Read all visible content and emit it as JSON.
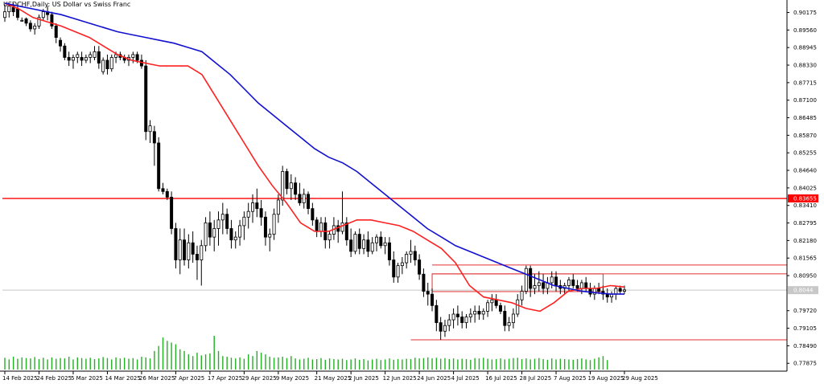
{
  "header": {
    "symbol": "USDCHF",
    "period": "Daily",
    "description": "US Dollar vs Swiss Franc"
  },
  "colors": {
    "background": "#ffffff",
    "bull_body": "#ffffff",
    "bear_body": "#000000",
    "candle_outline": "#000000",
    "ma_fast": "#ff2020",
    "ma_slow": "#1010d0",
    "volume": "#22b022",
    "level_line": "#ff0000",
    "box_line": "#e03030",
    "current_price_line": "#c8c8c8"
  },
  "chart_data": {
    "type": "candlestick",
    "title": "USDCHF,Daily: US Dollar vs Swiss Franc",
    "x_tick_labels": [
      "14 Feb 2025",
      "24 Feb 2025",
      "5 Mar 2025",
      "14 Mar 2025",
      "26 Mar 2025",
      "7 Apr 2025",
      "17 Apr 2025",
      "29 Apr 2025",
      "9 May 2025",
      "21 May 2025",
      "2 Jun 2025",
      "12 Jun 2025",
      "24 Jun 2025",
      "4 Jul 2025",
      "16 Jul 2025",
      "28 Jul 2025",
      "7 Aug 2025",
      "19 Aug 2025",
      "29 Aug 2025"
    ],
    "y_tick_labels": [
      "0.90175",
      "0.89560",
      "0.88945",
      "0.88330",
      "0.87715",
      "0.87100",
      "0.86485",
      "0.85870",
      "0.85255",
      "0.84640",
      "0.84025",
      "0.83410",
      "0.82795",
      "0.82180",
      "0.81565",
      "0.80950",
      "0.79720",
      "0.79105",
      "0.78490",
      "0.77875"
    ],
    "ylim": [
      0.776,
      0.905
    ],
    "grid": false,
    "highlighted_level": {
      "value": 0.83655,
      "label": "0.83655"
    },
    "current_price": {
      "value": 0.8044,
      "label": "0.8044"
    },
    "range_box": {
      "top": 0.8101,
      "bottom": 0.8039
    },
    "upper_mark_line": 0.8132,
    "lower_mark_line": 0.787,
    "indicators": [
      {
        "type": "moving_average",
        "color": "red",
        "values": [
          0.905,
          0.903,
          0.9,
          0.8985,
          0.897,
          0.895,
          0.893,
          0.89,
          0.887,
          0.885,
          0.884,
          0.883,
          0.883,
          0.883,
          0.88,
          0.872,
          0.864,
          0.856,
          0.848,
          0.841,
          0.835,
          0.828,
          0.825,
          0.825,
          0.827,
          0.829,
          0.829,
          0.828,
          0.827,
          0.825,
          0.822,
          0.819,
          0.814,
          0.806,
          0.802,
          0.801,
          0.8,
          0.798,
          0.797,
          0.8,
          0.804,
          0.805,
          0.805,
          0.806,
          0.8055
        ]
      },
      {
        "type": "moving_average",
        "color": "blue",
        "values": [
          0.905,
          0.904,
          0.903,
          0.902,
          0.901,
          0.8995,
          0.898,
          0.8965,
          0.895,
          0.894,
          0.893,
          0.892,
          0.891,
          0.8895,
          0.888,
          0.884,
          0.88,
          0.875,
          0.87,
          0.866,
          0.862,
          0.858,
          0.854,
          0.851,
          0.849,
          0.846,
          0.842,
          0.838,
          0.834,
          0.83,
          0.826,
          0.823,
          0.82,
          0.818,
          0.816,
          0.814,
          0.812,
          0.81,
          0.808,
          0.806,
          0.805,
          0.804,
          0.8035,
          0.803,
          0.803
        ]
      }
    ],
    "candles": [
      {
        "o": 0.9,
        "h": 0.9045,
        "l": 0.8985,
        "c": 0.902
      },
      {
        "o": 0.902,
        "h": 0.905,
        "l": 0.9,
        "c": 0.904
      },
      {
        "o": 0.9035,
        "h": 0.905,
        "l": 0.9005,
        "c": 0.902
      },
      {
        "o": 0.903,
        "h": 0.9048,
        "l": 0.899,
        "c": 0.9
      },
      {
        "o": 0.899,
        "h": 0.9,
        "l": 0.8985,
        "c": 0.899
      },
      {
        "o": 0.8995,
        "h": 0.9,
        "l": 0.897,
        "c": 0.898
      },
      {
        "o": 0.898,
        "h": 0.899,
        "l": 0.895,
        "c": 0.896
      },
      {
        "o": 0.896,
        "h": 0.898,
        "l": 0.894,
        "c": 0.897
      },
      {
        "o": 0.897,
        "h": 0.901,
        "l": 0.896,
        "c": 0.9
      },
      {
        "o": 0.9,
        "h": 0.903,
        "l": 0.899,
        "c": 0.902
      },
      {
        "o": 0.902,
        "h": 0.904,
        "l": 0.899,
        "c": 0.901
      },
      {
        "o": 0.901,
        "h": 0.902,
        "l": 0.896,
        "c": 0.897
      },
      {
        "o": 0.897,
        "h": 0.898,
        "l": 0.891,
        "c": 0.893
      },
      {
        "o": 0.892,
        "h": 0.893,
        "l": 0.888,
        "c": 0.89
      },
      {
        "o": 0.89,
        "h": 0.891,
        "l": 0.885,
        "c": 0.886
      },
      {
        "o": 0.886,
        "h": 0.888,
        "l": 0.883,
        "c": 0.885
      },
      {
        "o": 0.885,
        "h": 0.887,
        "l": 0.882,
        "c": 0.886
      },
      {
        "o": 0.886,
        "h": 0.888,
        "l": 0.884,
        "c": 0.887
      },
      {
        "o": 0.886,
        "h": 0.888,
        "l": 0.883,
        "c": 0.885
      },
      {
        "o": 0.885,
        "h": 0.887,
        "l": 0.884,
        "c": 0.886
      },
      {
        "o": 0.886,
        "h": 0.888,
        "l": 0.884,
        "c": 0.887
      },
      {
        "o": 0.886,
        "h": 0.89,
        "l": 0.885,
        "c": 0.888
      },
      {
        "o": 0.888,
        "h": 0.89,
        "l": 0.882,
        "c": 0.884
      },
      {
        "o": 0.881,
        "h": 0.886,
        "l": 0.88,
        "c": 0.885
      },
      {
        "o": 0.885,
        "h": 0.887,
        "l": 0.88,
        "c": 0.882
      },
      {
        "o": 0.882,
        "h": 0.887,
        "l": 0.881,
        "c": 0.886
      },
      {
        "o": 0.886,
        "h": 0.888,
        "l": 0.884,
        "c": 0.887
      },
      {
        "o": 0.887,
        "h": 0.888,
        "l": 0.885,
        "c": 0.886
      },
      {
        "o": 0.886,
        "h": 0.887,
        "l": 0.884,
        "c": 0.885
      },
      {
        "o": 0.885,
        "h": 0.887,
        "l": 0.883,
        "c": 0.886
      },
      {
        "o": 0.886,
        "h": 0.888,
        "l": 0.884,
        "c": 0.887
      },
      {
        "o": 0.887,
        "h": 0.888,
        "l": 0.884,
        "c": 0.885
      },
      {
        "o": 0.885,
        "h": 0.887,
        "l": 0.882,
        "c": 0.883
      },
      {
        "o": 0.883,
        "h": 0.885,
        "l": 0.857,
        "c": 0.86
      },
      {
        "o": 0.86,
        "h": 0.864,
        "l": 0.856,
        "c": 0.862
      },
      {
        "o": 0.86,
        "h": 0.862,
        "l": 0.848,
        "c": 0.856
      },
      {
        "o": 0.856,
        "h": 0.858,
        "l": 0.839,
        "c": 0.84
      },
      {
        "o": 0.84,
        "h": 0.842,
        "l": 0.838,
        "c": 0.839
      },
      {
        "o": 0.839,
        "h": 0.84,
        "l": 0.836,
        "c": 0.837
      },
      {
        "o": 0.837,
        "h": 0.839,
        "l": 0.824,
        "c": 0.826
      },
      {
        "o": 0.826,
        "h": 0.828,
        "l": 0.812,
        "c": 0.815
      },
      {
        "o": 0.815,
        "h": 0.826,
        "l": 0.81,
        "c": 0.822
      },
      {
        "o": 0.822,
        "h": 0.826,
        "l": 0.813,
        "c": 0.815
      },
      {
        "o": 0.815,
        "h": 0.824,
        "l": 0.812,
        "c": 0.821
      },
      {
        "o": 0.821,
        "h": 0.825,
        "l": 0.814,
        "c": 0.817
      },
      {
        "o": 0.817,
        "h": 0.82,
        "l": 0.808,
        "c": 0.815
      },
      {
        "o": 0.815,
        "h": 0.822,
        "l": 0.806,
        "c": 0.82
      },
      {
        "o": 0.82,
        "h": 0.83,
        "l": 0.818,
        "c": 0.828
      },
      {
        "o": 0.828,
        "h": 0.832,
        "l": 0.82,
        "c": 0.823
      },
      {
        "o": 0.823,
        "h": 0.829,
        "l": 0.818,
        "c": 0.826
      },
      {
        "o": 0.826,
        "h": 0.832,
        "l": 0.82,
        "c": 0.829
      },
      {
        "o": 0.829,
        "h": 0.835,
        "l": 0.824,
        "c": 0.831
      },
      {
        "o": 0.831,
        "h": 0.833,
        "l": 0.824,
        "c": 0.826
      },
      {
        "o": 0.826,
        "h": 0.829,
        "l": 0.819,
        "c": 0.822
      },
      {
        "o": 0.822,
        "h": 0.825,
        "l": 0.819,
        "c": 0.823
      },
      {
        "o": 0.823,
        "h": 0.829,
        "l": 0.82,
        "c": 0.827
      },
      {
        "o": 0.827,
        "h": 0.832,
        "l": 0.822,
        "c": 0.83
      },
      {
        "o": 0.83,
        "h": 0.835,
        "l": 0.826,
        "c": 0.832
      },
      {
        "o": 0.832,
        "h": 0.838,
        "l": 0.828,
        "c": 0.835
      },
      {
        "o": 0.835,
        "h": 0.84,
        "l": 0.83,
        "c": 0.833
      },
      {
        "o": 0.833,
        "h": 0.836,
        "l": 0.827,
        "c": 0.83
      },
      {
        "o": 0.83,
        "h": 0.832,
        "l": 0.82,
        "c": 0.823
      },
      {
        "o": 0.823,
        "h": 0.826,
        "l": 0.818,
        "c": 0.824
      },
      {
        "o": 0.824,
        "h": 0.833,
        "l": 0.822,
        "c": 0.831
      },
      {
        "o": 0.831,
        "h": 0.838,
        "l": 0.828,
        "c": 0.836
      },
      {
        "o": 0.836,
        "h": 0.848,
        "l": 0.834,
        "c": 0.846
      },
      {
        "o": 0.846,
        "h": 0.847,
        "l": 0.838,
        "c": 0.84
      },
      {
        "o": 0.84,
        "h": 0.845,
        "l": 0.836,
        "c": 0.842
      },
      {
        "o": 0.842,
        "h": 0.844,
        "l": 0.836,
        "c": 0.838
      },
      {
        "o": 0.838,
        "h": 0.842,
        "l": 0.834,
        "c": 0.835
      },
      {
        "o": 0.835,
        "h": 0.84,
        "l": 0.833,
        "c": 0.838
      },
      {
        "o": 0.838,
        "h": 0.839,
        "l": 0.831,
        "c": 0.833
      },
      {
        "o": 0.833,
        "h": 0.835,
        "l": 0.827,
        "c": 0.829
      },
      {
        "o": 0.829,
        "h": 0.83,
        "l": 0.823,
        "c": 0.825
      },
      {
        "o": 0.825,
        "h": 0.83,
        "l": 0.823,
        "c": 0.828
      },
      {
        "o": 0.828,
        "h": 0.83,
        "l": 0.819,
        "c": 0.822
      },
      {
        "o": 0.822,
        "h": 0.825,
        "l": 0.819,
        "c": 0.824
      },
      {
        "o": 0.824,
        "h": 0.83,
        "l": 0.822,
        "c": 0.827
      },
      {
        "o": 0.827,
        "h": 0.829,
        "l": 0.821,
        "c": 0.825
      },
      {
        "o": 0.825,
        "h": 0.839,
        "l": 0.824,
        "c": 0.828
      },
      {
        "o": 0.828,
        "h": 0.83,
        "l": 0.82,
        "c": 0.822
      },
      {
        "o": 0.822,
        "h": 0.826,
        "l": 0.816,
        "c": 0.818
      },
      {
        "o": 0.818,
        "h": 0.825,
        "l": 0.817,
        "c": 0.824
      },
      {
        "o": 0.824,
        "h": 0.826,
        "l": 0.817,
        "c": 0.819
      },
      {
        "o": 0.819,
        "h": 0.824,
        "l": 0.817,
        "c": 0.822
      },
      {
        "o": 0.822,
        "h": 0.825,
        "l": 0.816,
        "c": 0.818
      },
      {
        "o": 0.818,
        "h": 0.823,
        "l": 0.817,
        "c": 0.821
      },
      {
        "o": 0.821,
        "h": 0.824,
        "l": 0.818,
        "c": 0.823
      },
      {
        "o": 0.823,
        "h": 0.825,
        "l": 0.819,
        "c": 0.82
      },
      {
        "o": 0.82,
        "h": 0.823,
        "l": 0.817,
        "c": 0.821
      },
      {
        "o": 0.821,
        "h": 0.823,
        "l": 0.813,
        "c": 0.815
      },
      {
        "o": 0.815,
        "h": 0.818,
        "l": 0.807,
        "c": 0.809
      },
      {
        "o": 0.809,
        "h": 0.814,
        "l": 0.807,
        "c": 0.813
      },
      {
        "o": 0.813,
        "h": 0.816,
        "l": 0.81,
        "c": 0.814
      },
      {
        "o": 0.814,
        "h": 0.818,
        "l": 0.812,
        "c": 0.817
      },
      {
        "o": 0.817,
        "h": 0.822,
        "l": 0.814,
        "c": 0.818
      },
      {
        "o": 0.818,
        "h": 0.82,
        "l": 0.813,
        "c": 0.815
      },
      {
        "o": 0.815,
        "h": 0.817,
        "l": 0.808,
        "c": 0.81
      },
      {
        "o": 0.81,
        "h": 0.812,
        "l": 0.802,
        "c": 0.804
      },
      {
        "o": 0.804,
        "h": 0.807,
        "l": 0.799,
        "c": 0.803
      },
      {
        "o": 0.803,
        "h": 0.805,
        "l": 0.797,
        "c": 0.799
      },
      {
        "o": 0.799,
        "h": 0.801,
        "l": 0.79,
        "c": 0.793
      },
      {
        "o": 0.793,
        "h": 0.795,
        "l": 0.787,
        "c": 0.79
      },
      {
        "o": 0.79,
        "h": 0.794,
        "l": 0.788,
        "c": 0.792
      },
      {
        "o": 0.792,
        "h": 0.796,
        "l": 0.79,
        "c": 0.794
      },
      {
        "o": 0.794,
        "h": 0.798,
        "l": 0.791,
        "c": 0.796
      },
      {
        "o": 0.796,
        "h": 0.799,
        "l": 0.792,
        "c": 0.795
      },
      {
        "o": 0.795,
        "h": 0.797,
        "l": 0.791,
        "c": 0.793
      },
      {
        "o": 0.793,
        "h": 0.796,
        "l": 0.791,
        "c": 0.795
      },
      {
        "o": 0.795,
        "h": 0.798,
        "l": 0.793,
        "c": 0.796
      },
      {
        "o": 0.796,
        "h": 0.799,
        "l": 0.793,
        "c": 0.797
      },
      {
        "o": 0.797,
        "h": 0.799,
        "l": 0.794,
        "c": 0.796
      },
      {
        "o": 0.796,
        "h": 0.798,
        "l": 0.794,
        "c": 0.797
      },
      {
        "o": 0.797,
        "h": 0.801,
        "l": 0.795,
        "c": 0.8
      },
      {
        "o": 0.8,
        "h": 0.803,
        "l": 0.797,
        "c": 0.801
      },
      {
        "o": 0.801,
        "h": 0.803,
        "l": 0.798,
        "c": 0.799
      },
      {
        "o": 0.799,
        "h": 0.8,
        "l": 0.796,
        "c": 0.797
      },
      {
        "o": 0.797,
        "h": 0.799,
        "l": 0.79,
        "c": 0.792
      },
      {
        "o": 0.792,
        "h": 0.795,
        "l": 0.79,
        "c": 0.793
      },
      {
        "o": 0.793,
        "h": 0.798,
        "l": 0.791,
        "c": 0.796
      },
      {
        "o": 0.796,
        "h": 0.803,
        "l": 0.795,
        "c": 0.801
      },
      {
        "o": 0.801,
        "h": 0.806,
        "l": 0.799,
        "c": 0.804
      },
      {
        "o": 0.804,
        "h": 0.813,
        "l": 0.803,
        "c": 0.812
      },
      {
        "o": 0.812,
        "h": 0.813,
        "l": 0.802,
        "c": 0.805
      },
      {
        "o": 0.805,
        "h": 0.81,
        "l": 0.803,
        "c": 0.806
      },
      {
        "o": 0.806,
        "h": 0.811,
        "l": 0.804,
        "c": 0.807
      },
      {
        "o": 0.807,
        "h": 0.81,
        "l": 0.803,
        "c": 0.805
      },
      {
        "o": 0.805,
        "h": 0.809,
        "l": 0.803,
        "c": 0.807
      },
      {
        "o": 0.807,
        "h": 0.811,
        "l": 0.805,
        "c": 0.809
      },
      {
        "o": 0.809,
        "h": 0.811,
        "l": 0.804,
        "c": 0.806
      },
      {
        "o": 0.806,
        "h": 0.808,
        "l": 0.803,
        "c": 0.805
      },
      {
        "o": 0.805,
        "h": 0.807,
        "l": 0.803,
        "c": 0.806
      },
      {
        "o": 0.806,
        "h": 0.809,
        "l": 0.804,
        "c": 0.808
      },
      {
        "o": 0.808,
        "h": 0.81,
        "l": 0.805,
        "c": 0.806
      },
      {
        "o": 0.806,
        "h": 0.808,
        "l": 0.804,
        "c": 0.805
      },
      {
        "o": 0.805,
        "h": 0.808,
        "l": 0.803,
        "c": 0.807
      },
      {
        "o": 0.807,
        "h": 0.809,
        "l": 0.804,
        "c": 0.805
      },
      {
        "o": 0.805,
        "h": 0.807,
        "l": 0.802,
        "c": 0.803
      },
      {
        "o": 0.803,
        "h": 0.806,
        "l": 0.801,
        "c": 0.805
      },
      {
        "o": 0.805,
        "h": 0.807,
        "l": 0.803,
        "c": 0.804
      },
      {
        "o": 0.804,
        "h": 0.806,
        "l": 0.801,
        "c": 0.803
      },
      {
        "o": 0.803,
        "h": 0.805,
        "l": 0.8,
        "c": 0.802
      },
      {
        "o": 0.802,
        "h": 0.804,
        "l": 0.8,
        "c": 0.803
      },
      {
        "o": 0.803,
        "h": 0.806,
        "l": 0.801,
        "c": 0.805
      },
      {
        "o": 0.805,
        "h": 0.806,
        "l": 0.803,
        "c": 0.804
      },
      {
        "o": 0.804,
        "h": 0.806,
        "l": 0.803,
        "c": 0.8045
      }
    ],
    "volume": [
      0.35,
      0.3,
      0.38,
      0.32,
      0.36,
      0.34,
      0.33,
      0.37,
      0.31,
      0.35,
      0.3,
      0.36,
      0.32,
      0.34,
      0.33,
      0.38,
      0.3,
      0.36,
      0.34,
      0.32,
      0.35,
      0.31,
      0.33,
      0.37,
      0.34,
      0.3,
      0.36,
      0.33,
      0.35,
      0.32,
      0.34,
      0.3,
      0.38,
      0.36,
      0.33,
      0.55,
      0.7,
      0.95,
      0.85,
      0.8,
      0.75,
      0.6,
      0.55,
      0.45,
      0.4,
      0.5,
      0.42,
      0.45,
      0.48,
      1.0,
      0.55,
      0.4,
      0.38,
      0.35,
      0.33,
      0.36,
      0.32,
      0.45,
      0.4,
      0.55,
      0.5,
      0.45,
      0.38,
      0.35,
      0.36,
      0.38,
      0.34,
      0.4,
      0.33,
      0.3,
      0.32,
      0.35,
      0.3,
      0.31,
      0.34,
      0.29,
      0.33,
      0.31,
      0.3,
      0.32,
      0.28,
      0.3,
      0.33,
      0.29,
      0.31,
      0.27,
      0.3,
      0.32,
      0.28,
      0.3,
      0.33,
      0.29,
      0.31,
      0.3,
      0.32,
      0.31,
      0.35,
      0.33,
      0.34,
      0.36,
      0.33,
      0.35,
      0.32,
      0.34,
      0.31,
      0.33,
      0.3,
      0.32,
      0.31,
      0.29,
      0.34,
      0.33,
      0.35,
      0.32,
      0.3,
      0.31,
      0.33,
      0.3,
      0.32,
      0.34,
      0.35,
      0.31,
      0.33,
      0.3,
      0.32,
      0.34,
      0.31,
      0.29,
      0.33,
      0.3,
      0.32,
      0.31,
      0.3,
      0.29,
      0.31,
      0.33,
      0.3,
      0.28,
      0.32,
      0.36,
      0.4,
      0.28
    ]
  }
}
